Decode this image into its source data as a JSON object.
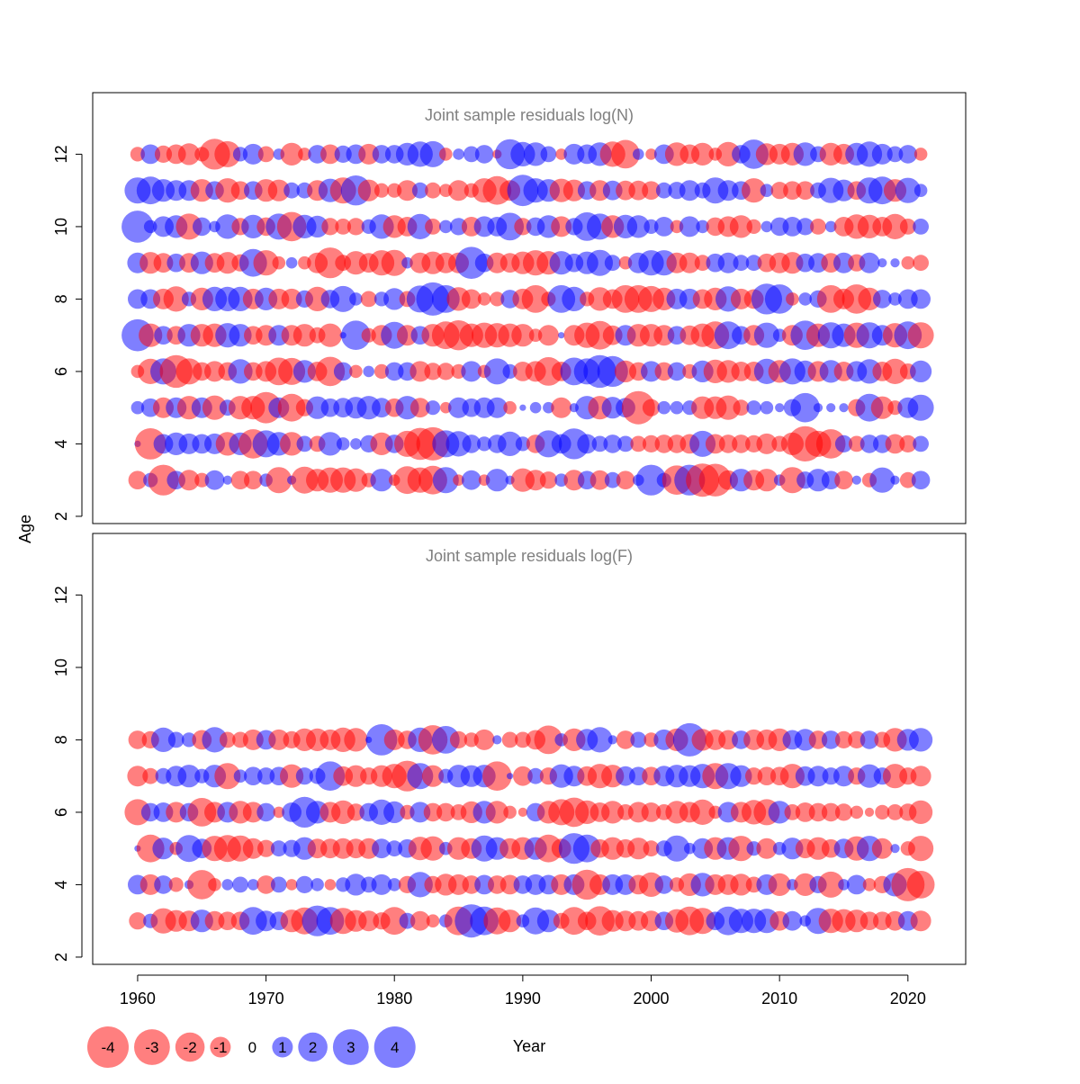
{
  "chart_data": {
    "type": "scatter",
    "xlabel": "Year",
    "ylabel": "Age",
    "xlim": [
      1956.5,
      2024.5
    ],
    "ylim": [
      1.8,
      13.7
    ],
    "x_ticks": [
      "1960",
      "1970",
      "1980",
      "1990",
      "2000",
      "2010",
      "2020"
    ],
    "y_ticks": [
      "2",
      "4",
      "6",
      "8",
      "10",
      "12"
    ],
    "colors": {
      "positive": "#0000ff",
      "negative": "#ff0000",
      "axis": "#000000",
      "title": "#808080"
    },
    "year_start": 1960,
    "year_end": 2021,
    "panels": [
      {
        "title": "Joint sample residuals log(N)",
        "ages": [
          3,
          4,
          5,
          6,
          7,
          8,
          9,
          10,
          11,
          12
        ],
        "residuals": {
          "3": [
            -0.8,
            0.5,
            -2.2,
            0.8,
            -1.0,
            -0.5,
            0.9,
            0.2,
            -0.8,
            -0.8,
            0.4,
            -1.6,
            0.2,
            -1.7,
            -1.2,
            -1.5,
            -1.5,
            -1.3,
            -0.5,
            1.2,
            -0.3,
            -1.8,
            -1.5,
            -1.9,
            1.6,
            -0.3,
            0.9,
            -0.3,
            1.2,
            0.2,
            -1.3,
            -1.0,
            -0.7,
            0.4,
            -1.0,
            0.8,
            -0.9,
            0.6,
            -0.8,
            0.3,
            2.2,
            0.5,
            -2.0,
            2.2,
            -2.6,
            -2.5,
            -0.9,
            1.2,
            -1.0,
            -1.2,
            0.3,
            -1.6,
            0.7,
            1.2,
            0.8,
            -0.8,
            0.2,
            -0.5,
            1.5,
            0.2,
            -0.6,
            0.8
          ],
          "4": [
            0.1,
            -2.3,
            0.9,
            1.2,
            1.0,
            0.9,
            1.0,
            -1.3,
            1.2,
            -2.0,
            1.7,
            1.3,
            -1.3,
            0.6,
            -0.6,
            1.3,
            0.4,
            0.3,
            0.7,
            -1.2,
            0.8,
            -1.6,
            -2.4,
            -2.6,
            1.7,
            1.5,
            0.8,
            0.5,
            0.8,
            1.4,
            0.5,
            -0.8,
            1.7,
            0.9,
            2.2,
            0.9,
            0.6,
            0.8,
            0.6,
            -0.6,
            -0.7,
            -0.8,
            -0.8,
            -0.9,
            1.6,
            -0.9,
            -0.8,
            -0.8,
            -0.7,
            -1.0,
            -0.6,
            -1.2,
            -2.9,
            -1.6,
            -2.0,
            0.7,
            -0.6,
            0.8,
            0.8,
            -0.9,
            -0.7,
            0.6
          ],
          "5": [
            0.4,
            0.8,
            -1.0,
            1.0,
            -1.3,
            1.0,
            -1.4,
            0.6,
            -1.3,
            -1.3,
            -2.3,
            1.0,
            -1.8,
            -0.7,
            1.2,
            0.8,
            0.9,
            1.1,
            1.3,
            0.9,
            -0.8,
            1.3,
            -0.9,
            0.5,
            -0.3,
            1.0,
            0.8,
            1.0,
            1.0,
            -0.4,
            0.1,
            0.3,
            0.3,
            -1.0,
            0.2,
            1.3,
            -1.3,
            1.1,
            0.9,
            -2.6,
            -0.7,
            0.4,
            0.4,
            0.5,
            -1.2,
            -1.2,
            -1.4,
            -0.6,
            0.5,
            0.4,
            0.2,
            0.7,
            2.0,
            0.2,
            0.2,
            0.2,
            -0.7,
            1.8,
            -1.2,
            -0.5,
            1.0,
            1.6
          ],
          "6": [
            -0.4,
            -1.5,
            1.6,
            -2.5,
            -1.6,
            -0.8,
            -1.0,
            -0.8,
            1.4,
            -0.8,
            -1.0,
            -1.8,
            -1.7,
            1.2,
            -0.9,
            -2.0,
            0.8,
            -0.4,
            0.3,
            -0.5,
            0.8,
            0.8,
            -1.0,
            -0.7,
            -0.7,
            -0.5,
            1.0,
            -0.4,
            1.6,
            0.5,
            -0.9,
            -1.0,
            -1.9,
            -0.9,
            1.8,
            1.6,
            2.5,
            2.2,
            -1.1,
            -0.8,
            1.0,
            -0.8,
            0.8,
            -0.5,
            1.1,
            -1.3,
            -1.2,
            -0.9,
            -0.9,
            1.5,
            -1.2,
            1.6,
            1.1,
            -1.0,
            1.2,
            -0.9,
            1.0,
            1.4,
            -0.9,
            -1.5,
            -0.6,
            1.1
          ],
          "7": [
            2.4,
            -1.3,
            0.8,
            -0.8,
            1.2,
            -1.2,
            -1.3,
            1.4,
            1.2,
            -0.8,
            -1.0,
            1.0,
            -1.0,
            -1.2,
            -0.6,
            -1.3,
            0.1,
            2.0,
            -0.5,
            -1.0,
            1.7,
            -1.0,
            0.8,
            -1.2,
            -1.8,
            -2.1,
            -1.3,
            -1.5,
            -1.4,
            -1.3,
            -1.2,
            -0.4,
            -1.0,
            0.1,
            -1.0,
            -1.5,
            -1.9,
            -0.9,
            1.0,
            -1.2,
            -1.2,
            -1.0,
            0.8,
            -0.9,
            -1.3,
            -1.8,
            1.8,
            0.8,
            -1.0,
            1.5,
            0.4,
            -1.0,
            2.0,
            -1.3,
            1.6,
            1.3,
            -1.5,
            1.6,
            1.0,
            -1.4,
            1.8,
            -1.6
          ],
          "8": [
            0.9,
            0.9,
            -1.0,
            -1.5,
            0.5,
            -1.2,
            1.4,
            1.4,
            1.4,
            -1.0,
            1.2,
            -1.0,
            -1.0,
            0.7,
            -1.4,
            0.8,
            1.6,
            0.4,
            -0.6,
            0.5,
            1.1,
            -0.6,
            1.7,
            2.6,
            1.8,
            -1.3,
            -0.9,
            -0.4,
            -0.5,
            0.8,
            -1.0,
            -1.8,
            -0.5,
            1.8,
            1.4,
            -0.5,
            -1.3,
            -0.9,
            -1.8,
            -1.8,
            -1.6,
            -1.2,
            1.0,
            1.0,
            -0.9,
            -1.2,
            1.5,
            -1.0,
            -0.9,
            2.2,
            2.0,
            -0.4,
            0.4,
            0.7,
            -1.8,
            -1.0,
            -2.0,
            -1.2,
            0.8,
            0.4,
            0.9,
            0.9
          ],
          "9": [
            1.0,
            -1.1,
            -0.9,
            0.8,
            -0.9,
            1.2,
            -0.9,
            -1.1,
            -0.7,
            1.8,
            -1.5,
            -0.4,
            0.3,
            -0.4,
            -1.0,
            -2.2,
            -0.6,
            -1.3,
            -0.9,
            -1.5,
            -1.6,
            0.3,
            -1.0,
            -1.2,
            -1.0,
            -1.0,
            2.4,
            0.8,
            -1.0,
            -0.9,
            -1.2,
            -1.5,
            -1.3,
            1.3,
            0.8,
            1.2,
            1.6,
            0.6,
            -0.4,
            1.0,
            1.5,
            1.5,
            -1.0,
            -1.0,
            -0.6,
            0.8,
            1.0,
            0.6,
            0.6,
            -0.8,
            -1.0,
            -1.1,
            0.8,
            0.9,
            -0.9,
            1.0,
            -0.7,
            1.0,
            0.2,
            0.2,
            -0.4,
            -0.6
          ],
          "10": [
            2.4,
            0.4,
            1.0,
            1.2,
            -1.6,
            0.8,
            0.3,
            1.4,
            -0.7,
            1.3,
            -0.8,
            1.6,
            -2.0,
            1.3,
            1.1,
            -0.7,
            -0.6,
            -0.7,
            0.5,
            1.4,
            -1.2,
            -0.9,
            1.5,
            -0.6,
            0.4,
            0.7,
            -0.9,
            1.0,
            0.9,
            1.8,
            -0.7,
            0.8,
            1.2,
            -1.0,
            0.7,
            1.9,
            1.6,
            -1.2,
            1.3,
            1.2,
            0.5,
            0.9,
            -0.4,
            1.0,
            0.4,
            -0.8,
            -1.0,
            -1.2,
            -0.5,
            0.3,
            0.8,
            0.9,
            0.7,
            -0.6,
            0.3,
            -0.9,
            -1.4,
            -1.3,
            -0.9,
            -1.5,
            -0.6,
            0.6
          ],
          "11": [
            1.6,
            1.8,
            1.2,
            1.0,
            1.0,
            -1.2,
            0.8,
            -1.4,
            -0.8,
            0.8,
            -1.2,
            -1.1,
            0.6,
            0.6,
            -1.0,
            1.3,
            -1.6,
            2.1,
            -1.1,
            -0.5,
            -0.5,
            -1.0,
            0.6,
            -0.6,
            -0.4,
            -1.0,
            -0.5,
            -1.4,
            -1.9,
            -1.0,
            2.3,
            1.4,
            1.2,
            -1.3,
            -1.1,
            0.8,
            -1.0,
            0.9,
            -0.9,
            -0.9,
            -0.8,
            0.6,
            0.7,
            1.0,
            0.6,
            1.6,
            1.0,
            0.8,
            -1.4,
            0.4,
            -0.7,
            -0.8,
            -0.8,
            0.6,
            1.5,
            1.1,
            -0.8,
            1.6,
            1.8,
            -1.2,
            1.5,
            0.4
          ],
          "12": [
            -0.5,
            0.9,
            -0.7,
            -0.9,
            -1.1,
            -0.5,
            -2.2,
            -1.6,
            0.5,
            1.0,
            -0.6,
            0.3,
            -1.2,
            -0.4,
            0.8,
            -0.9,
            0.7,
            0.9,
            -1.0,
            0.8,
            0.8,
            1.2,
            1.5,
            1.6,
            -0.4,
            0.3,
            0.6,
            0.8,
            -0.2,
            2.1,
            1.4,
            1.3,
            0.6,
            -0.3,
            1.0,
            0.9,
            1.3,
            -1.5,
            -1.9,
            0.3,
            -0.3,
            0.9,
            -1.3,
            -0.9,
            -1.2,
            -0.4,
            -1.4,
            0.8,
            2.0,
            -1.1,
            -1.0,
            -1.2,
            1.3,
            0.6,
            -1.2,
            -1.0,
            1.2,
            1.5,
            1.0,
            0.6,
            0.8,
            -0.4
          ]
        }
      },
      {
        "title": "Joint sample residuals log(F)",
        "ages": [
          3,
          4,
          5,
          6,
          7,
          8
        ],
        "residuals": {
          "3": [
            -0.7,
            0.5,
            -1.5,
            -1.1,
            -1.0,
            1.2,
            -0.9,
            -0.8,
            -0.8,
            1.8,
            1.0,
            0.8,
            -1.2,
            -1.7,
            2.2,
            1.8,
            -1.6,
            -1.1,
            -1.0,
            -0.7,
            -1.8,
            0.6,
            -0.9,
            -0.4,
            0.4,
            -1.9,
            2.6,
            1.9,
            -1.7,
            -1.2,
            0.4,
            1.7,
            1.2,
            -0.6,
            -1.8,
            -0.8,
            -2.0,
            -1.1,
            -1.0,
            -0.9,
            -1.0,
            0.8,
            -1.3,
            -1.9,
            -1.6,
            0.8,
            1.9,
            1.4,
            1.4,
            1.4,
            -0.9,
            0.9,
            0.3,
            1.6,
            -1.4,
            -1.3,
            -1.2,
            -0.8,
            -0.8,
            -0.9,
            0.9,
            -1.0
          ],
          "4": [
            0.9,
            -1.0,
            0.8,
            -0.5,
            0.2,
            -2.0,
            -0.4,
            0.3,
            0.6,
            0.3,
            -0.8,
            0.6,
            -0.3,
            0.7,
            0.4,
            -0.3,
            0.5,
            1.1,
            0.6,
            1.0,
            0.4,
            -0.7,
            1.5,
            -0.7,
            -1.1,
            -1.0,
            -0.8,
            0.9,
            -0.8,
            -0.9,
            0.8,
            1.0,
            0.9,
            -1.0,
            1.0,
            -2.1,
            -1.0,
            1.0,
            1.0,
            -0.9,
            -1.4,
            0.8,
            -0.5,
            -1.2,
            1.3,
            -1.0,
            -1.0,
            -1.1,
            -0.6,
            1.0,
            -1.2,
            0.3,
            -1.2,
            0.7,
            -1.6,
            0.3,
            0.9,
            -0.4,
            -0.7,
            1.3,
            -2.6,
            -1.8
          ],
          "5": [
            0.1,
            -1.8,
            1.1,
            -0.4,
            1.7,
            0.9,
            -1.5,
            -1.7,
            -1.6,
            -1.0,
            -0.7,
            0.6,
            0.7,
            1.2,
            -0.9,
            -0.9,
            -1.0,
            -0.9,
            -1.0,
            0.9,
            0.6,
            0.8,
            -1.3,
            -1.4,
            0.4,
            -1.2,
            -1.0,
            1.6,
            1.2,
            -1.0,
            -1.2,
            1.2,
            -1.8,
            -0.9,
            2.2,
            1.8,
            -0.8,
            -1.2,
            -0.8,
            -1.1,
            -0.6,
            0.6,
            1.6,
            0.3,
            1.0,
            -1.2,
            1.2,
            -1.5,
            0.5,
            -1.0,
            0.4,
            1.1,
            -0.9,
            -1.2,
            -0.8,
            0.9,
            -1.4,
            1.5,
            -1.0,
            0.2,
            -0.5,
            -1.5
          ],
          "6": [
            -1.6,
            0.8,
            0.9,
            -1.0,
            0.8,
            -1.9,
            -1.0,
            1.0,
            -1.2,
            -1.0,
            0.8,
            -0.3,
            0.9,
            2.2,
            1.2,
            -1.0,
            -1.3,
            -0.7,
            0.8,
            1.5,
            1.1,
            -0.5,
            1.0,
            -0.8,
            -0.8,
            -0.6,
            -1.1,
            1.2,
            -1.2,
            -0.4,
            -0.2,
            0.8,
            -1.2,
            -1.6,
            -2.0,
            -1.3,
            -0.9,
            -1.2,
            -0.6,
            -1.0,
            -0.9,
            -0.6,
            -1.2,
            -1.0,
            -1.5,
            -0.4,
            1.0,
            -1.0,
            -1.4,
            -1.6,
            1.2,
            -0.6,
            -0.9,
            -0.8,
            -0.8,
            -0.7,
            -0.4,
            -0.2,
            -0.5,
            -0.6,
            -0.7,
            -1.3
          ],
          "7": [
            -1.0,
            -0.6,
            0.6,
            1.0,
            1.2,
            0.5,
            1.2,
            -1.6,
            0.4,
            0.8,
            0.7,
            0.8,
            -1.3,
            0.7,
            0.6,
            2.0,
            -0.9,
            -1.1,
            -0.7,
            -1.1,
            -1.4,
            -2.2,
            1.6,
            -1.1,
            0.5,
            1.2,
            1.1,
            1.2,
            -2.0,
            0.1,
            -0.9,
            0.6,
            -0.7,
            1.3,
            1.0,
            -0.9,
            -1.4,
            -1.2,
            0.9,
            0.8,
            -0.8,
            1.0,
            1.2,
            1.1,
            1.4,
            -1.6,
            1.6,
            1.1,
            -0.7,
            -0.8,
            -0.8,
            -1.4,
            0.9,
            1.0,
            0.7,
            1.0,
            -0.7,
            1.3,
            0.7,
            -1.4,
            -0.7,
            -1.0
          ],
          "8": [
            -0.8,
            -0.7,
            1.4,
            0.6,
            0.5,
            -0.9,
            1.5,
            -0.6,
            -0.6,
            -1.0,
            0.9,
            -1.0,
            -0.7,
            -1.2,
            -1.2,
            -1.0,
            -1.4,
            -1.3,
            0.1,
            2.3,
            -1.0,
            -0.8,
            1.4,
            -2.0,
            1.8,
            -0.7,
            -0.5,
            -1.0,
            0.2,
            -0.6,
            -0.6,
            -0.9,
            -1.9,
            0.4,
            -1.2,
            1.1,
            1.5,
            0.2,
            -0.8,
            0.6,
            -0.5,
            1.0,
            -1.2,
            2.6,
            -1.1,
            -1.0,
            -0.9,
            0.8,
            -1.0,
            -1.0,
            -1.2,
            0.9,
            1.1,
            -0.8,
            0.8,
            -0.7,
            -0.7,
            0.8,
            -0.6,
            -1.3,
            1.1,
            1.3
          ]
        }
      }
    ],
    "legend": {
      "values": [
        -4,
        -3,
        -2,
        -1,
        0,
        1,
        2,
        3,
        4
      ],
      "labels": [
        "-4",
        "-3",
        "-2",
        "-1",
        "0",
        "1",
        "2",
        "3",
        "4"
      ]
    }
  }
}
